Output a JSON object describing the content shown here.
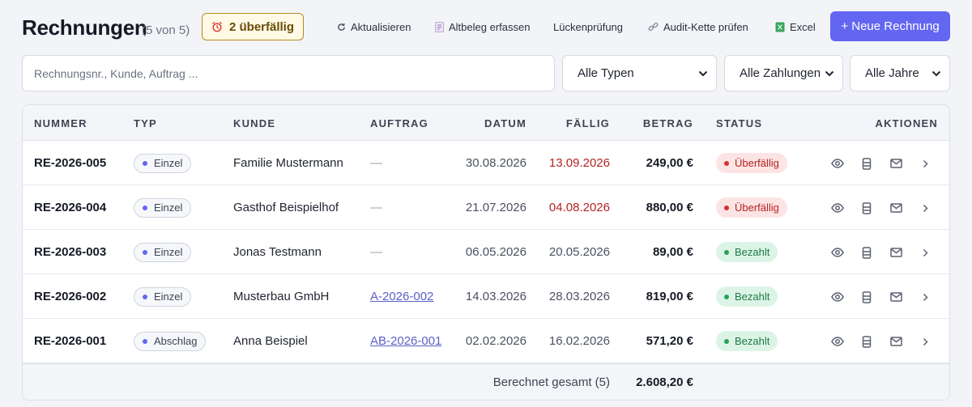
{
  "header": {
    "title": "Rechnungen",
    "count": "(5 von 5)",
    "overdue_badge": "2 überfällig",
    "toolbar": {
      "refresh": "Aktualisieren",
      "legacy": "Altbeleg erfassen",
      "gap_check": "Lückenprüfung",
      "audit": "Audit-Kette prüfen",
      "excel": "Excel"
    },
    "new_invoice": "+ Neue Rechnung"
  },
  "filters": {
    "search_placeholder": "Rechnungsnr., Kunde, Auftrag ...",
    "type_select": "Alle Typen",
    "payment_select": "Alle Zahlungen",
    "year_select": "Alle Jahre"
  },
  "table": {
    "columns": {
      "nummer": "NUMMER",
      "typ": "TYP",
      "kunde": "KUNDE",
      "auftrag": "AUFTRAG",
      "datum": "DATUM",
      "faellig": "FÄLLIG",
      "betrag": "BETRAG",
      "status": "STATUS",
      "aktionen": "AKTIONEN"
    },
    "rows": [
      {
        "nummer": "RE-2026-005",
        "typ": "Einzel",
        "kunde": "Familie Mustermann",
        "auftrag": "—",
        "datum": "30.08.2026",
        "faellig": "13.09.2026",
        "betrag": "249,00 €",
        "status": "Überfällig"
      },
      {
        "nummer": "RE-2026-004",
        "typ": "Einzel",
        "kunde": "Gasthof Beispielhof",
        "auftrag": "—",
        "datum": "21.07.2026",
        "faellig": "04.08.2026",
        "betrag": "880,00 €",
        "status": "Überfällig"
      },
      {
        "nummer": "RE-2026-003",
        "typ": "Einzel",
        "kunde": "Jonas Testmann",
        "auftrag": "—",
        "datum": "06.05.2026",
        "faellig": "20.05.2026",
        "betrag": "89,00 €",
        "status": "Bezahlt"
      },
      {
        "nummer": "RE-2026-002",
        "typ": "Einzel",
        "kunde": "Musterbau GmbH",
        "auftrag": "A-2026-002",
        "datum": "14.03.2026",
        "faellig": "28.03.2026",
        "betrag": "819,00 €",
        "status": "Bezahlt"
      },
      {
        "nummer": "RE-2026-001",
        "typ": "Abschlag",
        "kunde": "Anna Beispiel",
        "auftrag": "AB-2026-001",
        "datum": "02.02.2026",
        "faellig": "16.02.2026",
        "betrag": "571,20 €",
        "status": "Bezahlt"
      }
    ],
    "footer": {
      "label": "Berechnet gesamt (5)",
      "total": "2.608,20 €"
    }
  },
  "colors": {
    "accent": "#6366f1",
    "overdue": "#b42323",
    "paid": "#1e7a47"
  },
  "icons": [
    "alarm-clock-icon",
    "refresh-icon",
    "document-icon",
    "link-icon",
    "excel-icon",
    "eye-icon",
    "print-icon",
    "mail-icon",
    "chevron-right-icon",
    "chevron-down-icon"
  ]
}
